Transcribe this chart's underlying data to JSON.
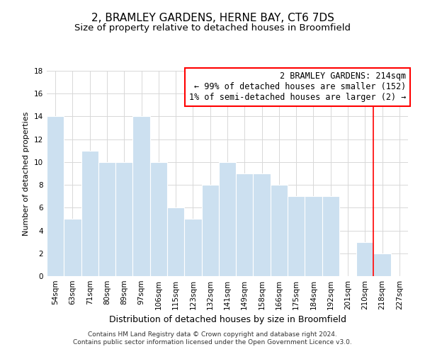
{
  "title": "2, BRAMLEY GARDENS, HERNE BAY, CT6 7DS",
  "subtitle": "Size of property relative to detached houses in Broomfield",
  "xlabel": "Distribution of detached houses by size in Broomfield",
  "ylabel": "Number of detached properties",
  "bar_labels": [
    "54sqm",
    "63sqm",
    "71sqm",
    "80sqm",
    "89sqm",
    "97sqm",
    "106sqm",
    "115sqm",
    "123sqm",
    "132sqm",
    "141sqm",
    "149sqm",
    "158sqm",
    "166sqm",
    "175sqm",
    "184sqm",
    "192sqm",
    "201sqm",
    "210sqm",
    "218sqm",
    "227sqm"
  ],
  "bar_values": [
    14,
    5,
    11,
    10,
    10,
    14,
    10,
    6,
    5,
    8,
    10,
    9,
    9,
    8,
    7,
    7,
    7,
    0,
    3,
    2,
    0
  ],
  "bar_color": "#cce0f0",
  "ylim": [
    0,
    18
  ],
  "yticks": [
    0,
    2,
    4,
    6,
    8,
    10,
    12,
    14,
    16,
    18
  ],
  "annotation_text_line1": "2 BRAMLEY GARDENS: 214sqm",
  "annotation_text_line2": "← 99% of detached houses are smaller (152)",
  "annotation_text_line3": "1% of semi-detached houses are larger (2) →",
  "vline_x_label": "210sqm",
  "footnote1": "Contains HM Land Registry data © Crown copyright and database right 2024.",
  "footnote2": "Contains public sector information licensed under the Open Government Licence v3.0.",
  "grid_color": "#d8d8d8",
  "background_color": "#ffffff",
  "title_fontsize": 11,
  "subtitle_fontsize": 9.5,
  "xlabel_fontsize": 9,
  "ylabel_fontsize": 8,
  "tick_fontsize": 7.5,
  "annotation_fontsize": 8.5,
  "footnote_fontsize": 6.5
}
